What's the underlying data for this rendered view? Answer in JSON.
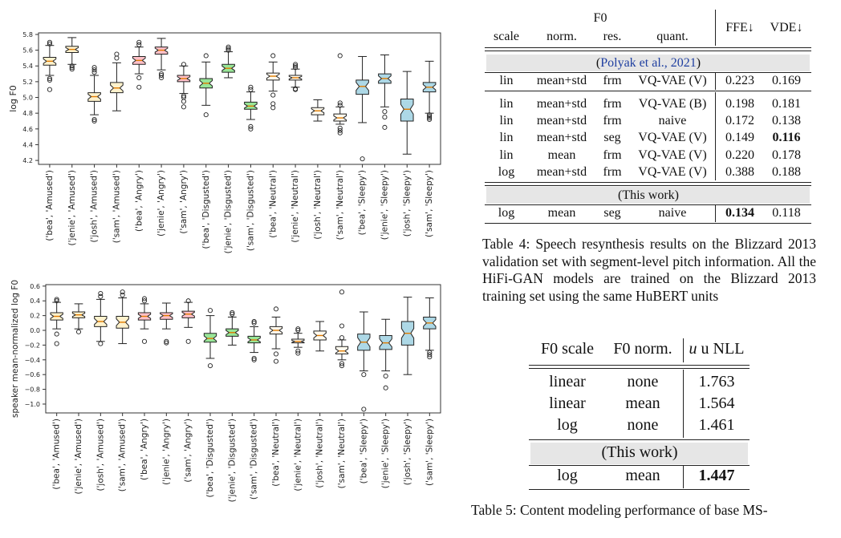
{
  "chart_top": {
    "type": "box",
    "ylabel": "log F0",
    "ylim": [
      4.15,
      5.82
    ],
    "yticks": [
      "4.2",
      "4.4",
      "4.6",
      "4.8",
      "5.0",
      "5.2",
      "5.4",
      "5.6",
      "5.8"
    ],
    "categories": [
      "('bea', 'Amused')",
      "('jenie', 'Amused')",
      "('josh', 'Amused')",
      "('sam', 'Amused')",
      "('bea', 'Angry')",
      "('jenie', 'Angry')",
      "('sam', 'Angry')",
      "('bea', 'Disgusted')",
      "('jenie', 'Disgusted')",
      "('sam', 'Disgusted')",
      "('bea', 'Neutral')",
      "('jenie', 'Neutral')",
      "('josh', 'Neutral')",
      "('sam', 'Neutral')",
      "('bea', 'Sleepy')",
      "('jenie', 'Sleepy')",
      "('josh', 'Sleepy')",
      "('sam', 'Sleepy')"
    ],
    "colors": [
      "#fff2cc",
      "#fff2cc",
      "#fff2cc",
      "#fff2cc",
      "#ffc0c8",
      "#ffc0c8",
      "#ffc0c8",
      "#98e698",
      "#98e698",
      "#98e698",
      "#fffaee",
      "#fffaee",
      "#fffaee",
      "#fffaee",
      "#add8e6",
      "#add8e6",
      "#add8e6",
      "#add8e6"
    ],
    "boxes": [
      {
        "wlo": 5.28,
        "q1": 5.41,
        "med": 5.46,
        "q3": 5.51,
        "whi": 5.66,
        "out": [
          5.1,
          5.22,
          5.24,
          5.68,
          5.7
        ]
      },
      {
        "wlo": 5.42,
        "q1": 5.57,
        "med": 5.61,
        "q3": 5.65,
        "whi": 5.76,
        "out": [
          5.36,
          5.38,
          5.4
        ]
      },
      {
        "wlo": 4.78,
        "q1": 4.95,
        "med": 5.01,
        "q3": 5.06,
        "whi": 5.28,
        "out": [
          4.7,
          4.72,
          5.32,
          5.35,
          5.38
        ]
      },
      {
        "wlo": 4.83,
        "q1": 5.06,
        "med": 5.12,
        "q3": 5.19,
        "whi": 5.44,
        "out": [
          5.5,
          5.55
        ]
      },
      {
        "wlo": 5.3,
        "q1": 5.42,
        "med": 5.47,
        "q3": 5.52,
        "whi": 5.64,
        "out": [
          5.13,
          5.25,
          5.67,
          5.7
        ]
      },
      {
        "wlo": 5.35,
        "q1": 5.55,
        "med": 5.6,
        "q3": 5.64,
        "whi": 5.75,
        "out": [
          5.25,
          5.28,
          5.3
        ]
      },
      {
        "wlo": 5.05,
        "q1": 5.2,
        "med": 5.24,
        "q3": 5.28,
        "whi": 5.4,
        "out": [
          4.88,
          4.95,
          5.0,
          5.02,
          5.42
        ]
      },
      {
        "wlo": 4.9,
        "q1": 5.12,
        "med": 5.18,
        "q3": 5.24,
        "whi": 5.45,
        "out": [
          4.78,
          5.53
        ]
      },
      {
        "wlo": 5.25,
        "q1": 5.32,
        "med": 5.37,
        "q3": 5.42,
        "whi": 5.58,
        "out": [
          5.6,
          5.62,
          5.64
        ]
      },
      {
        "wlo": 4.72,
        "q1": 4.85,
        "med": 4.89,
        "q3": 4.94,
        "whi": 5.07,
        "out": [
          4.6,
          4.63,
          5.1,
          5.13
        ]
      },
      {
        "wlo": 5.08,
        "q1": 5.22,
        "med": 5.27,
        "q3": 5.31,
        "whi": 5.45,
        "out": [
          4.87,
          4.92,
          5.03,
          5.53
        ]
      },
      {
        "wlo": 5.13,
        "q1": 5.22,
        "med": 5.25,
        "q3": 5.28,
        "whi": 5.36,
        "out": [
          5.1,
          5.11,
          5.38,
          5.4,
          5.42
        ]
      },
      {
        "wlo": 4.7,
        "q1": 4.78,
        "med": 4.83,
        "q3": 4.87,
        "whi": 4.97,
        "out": []
      },
      {
        "wlo": 4.66,
        "q1": 4.7,
        "med": 4.74,
        "q3": 4.79,
        "whi": 4.88,
        "out": [
          4.55,
          4.58,
          4.61,
          4.9,
          4.93,
          5.53
        ]
      },
      {
        "wlo": 4.68,
        "q1": 5.04,
        "med": 5.14,
        "q3": 5.22,
        "whi": 5.52,
        "out": [
          4.22
        ]
      },
      {
        "wlo": 4.88,
        "q1": 5.18,
        "med": 5.24,
        "q3": 5.3,
        "whi": 5.54,
        "out": [
          4.62,
          4.75,
          4.82
        ]
      },
      {
        "wlo": 4.28,
        "q1": 4.7,
        "med": 4.85,
        "q3": 4.98,
        "whi": 5.33,
        "out": []
      },
      {
        "wlo": 4.8,
        "q1": 5.07,
        "med": 5.13,
        "q3": 5.19,
        "whi": 5.46,
        "out": [
          4.72,
          4.74,
          4.76,
          4.78
        ]
      }
    ]
  },
  "chart_bottom": {
    "type": "box",
    "ylabel": "speaker mean-normalized log F0",
    "ylim": [
      -1.12,
      0.62
    ],
    "yticks": [
      "−1.0",
      "−0.8",
      "−0.6",
      "−0.4",
      "−0.2",
      "0.0",
      "0.2",
      "0.4",
      "0.6"
    ],
    "categories": [
      "('bea', 'Amused')",
      "('jenie', 'Amused')",
      "('josh', 'Amused')",
      "('sam', 'Amused')",
      "('bea', 'Angry')",
      "('jenie', 'Angry')",
      "('sam', 'Angry')",
      "('bea', 'Disgusted')",
      "('jenie', 'Disgusted')",
      "('sam', 'Disgusted')",
      "('bea', 'Neutral')",
      "('jenie', 'Neutral')",
      "('josh', 'Neutral')",
      "('sam', 'Neutral')",
      "('bea', 'Sleepy')",
      "('jenie', 'Sleepy')",
      "('josh', 'Sleepy')",
      "('sam', 'Sleepy')"
    ],
    "colors": [
      "#fff2cc",
      "#fff2cc",
      "#fff2cc",
      "#fff2cc",
      "#ffc0c8",
      "#ffc0c8",
      "#ffc0c8",
      "#98e698",
      "#98e698",
      "#98e698",
      "#fffaee",
      "#fffaee",
      "#fffaee",
      "#fffaee",
      "#add8e6",
      "#add8e6",
      "#add8e6",
      "#add8e6"
    ],
    "boxes": [
      {
        "wlo": 0.02,
        "q1": 0.14,
        "med": 0.19,
        "q3": 0.24,
        "whi": 0.38,
        "out": [
          -0.18,
          -0.05,
          0.4,
          0.42
        ]
      },
      {
        "wlo": 0.02,
        "q1": 0.17,
        "med": 0.21,
        "q3": 0.25,
        "whi": 0.36,
        "out": [
          -0.02
        ]
      },
      {
        "wlo": -0.15,
        "q1": 0.05,
        "med": 0.12,
        "q3": 0.19,
        "whi": 0.42,
        "out": [
          -0.18,
          0.46,
          0.5
        ]
      },
      {
        "wlo": -0.18,
        "q1": 0.03,
        "med": 0.11,
        "q3": 0.19,
        "whi": 0.44,
        "out": [
          0.48,
          0.52
        ]
      },
      {
        "wlo": 0.02,
        "q1": 0.14,
        "med": 0.19,
        "q3": 0.24,
        "whi": 0.36,
        "out": [
          -0.15,
          0.4,
          0.43
        ]
      },
      {
        "wlo": 0.02,
        "q1": 0.15,
        "med": 0.2,
        "q3": 0.24,
        "whi": 0.37,
        "out": [
          -0.15,
          -0.17
        ]
      },
      {
        "wlo": 0.04,
        "q1": 0.17,
        "med": 0.22,
        "q3": 0.26,
        "whi": 0.38,
        "out": [
          -0.15,
          0.4
        ]
      },
      {
        "wlo": -0.38,
        "q1": -0.16,
        "med": -0.11,
        "q3": -0.04,
        "whi": 0.2,
        "out": [
          -0.48,
          0.27
        ]
      },
      {
        "wlo": -0.2,
        "q1": -0.08,
        "med": -0.03,
        "q3": 0.02,
        "whi": 0.18,
        "out": [
          0.22,
          0.24
        ]
      },
      {
        "wlo": -0.3,
        "q1": -0.17,
        "med": -0.13,
        "q3": -0.08,
        "whi": 0.05,
        "out": [
          -0.38,
          -0.4,
          0.1,
          0.12
        ]
      },
      {
        "wlo": -0.25,
        "q1": -0.05,
        "med": 0.0,
        "q3": 0.05,
        "whi": 0.18,
        "out": [
          -0.32,
          -0.42,
          0.29
        ]
      },
      {
        "wlo": -0.23,
        "q1": -0.17,
        "med": -0.15,
        "q3": -0.12,
        "whi": -0.04,
        "out": [
          -0.28,
          -0.31,
          0.0,
          0.02
        ]
      },
      {
        "wlo": -0.28,
        "q1": -0.13,
        "med": -0.07,
        "q3": -0.01,
        "whi": 0.12,
        "out": []
      },
      {
        "wlo": -0.4,
        "q1": -0.32,
        "med": -0.28,
        "q3": -0.22,
        "whi": -0.13,
        "out": [
          -0.45,
          -0.48,
          -0.1,
          0.06,
          0.52
        ]
      },
      {
        "wlo": -0.55,
        "q1": -0.27,
        "med": -0.16,
        "q3": -0.05,
        "whi": 0.25,
        "out": [
          -0.6,
          -1.07
        ]
      },
      {
        "wlo": -0.55,
        "q1": -0.26,
        "med": -0.17,
        "q3": -0.07,
        "whi": 0.15,
        "out": [
          -0.62,
          -0.78
        ]
      },
      {
        "wlo": -0.6,
        "q1": -0.2,
        "med": -0.04,
        "q3": 0.12,
        "whi": 0.45,
        "out": []
      },
      {
        "wlo": -0.27,
        "q1": 0.02,
        "med": 0.1,
        "q3": 0.18,
        "whi": 0.44,
        "out": [
          -0.3,
          -0.33,
          -0.36
        ]
      }
    ]
  },
  "table4": {
    "group_header": "F0",
    "headers": [
      "scale",
      "norm.",
      "res.",
      "quant.",
      "FFE↓",
      "VDE↓"
    ],
    "section1_cite": "Polyak et al., 2021",
    "rows1": [
      [
        "lin",
        "mean+std",
        "frm",
        "VQ-VAE (V)",
        "0.223",
        "0.169"
      ]
    ],
    "rows2": [
      [
        "lin",
        "mean+std",
        "frm",
        "VQ-VAE (B)",
        "0.198",
        "0.181"
      ],
      [
        "lin",
        "mean+std",
        "frm",
        "naive",
        "0.172",
        "0.138"
      ],
      [
        "lin",
        "mean+std",
        "seg",
        "VQ-VAE (V)",
        "0.149",
        "0.116"
      ],
      [
        "lin",
        "mean",
        "frm",
        "VQ-VAE (V)",
        "0.220",
        "0.178"
      ],
      [
        "log",
        "mean+std",
        "frm",
        "VQ-VAE (V)",
        "0.388",
        "0.188"
      ]
    ],
    "this_work": "(This work)",
    "row3": [
      "log",
      "mean",
      "seg",
      "naive",
      "0.134",
      "0.118"
    ],
    "caption": "Table 4: Speech resynthesis results on the Blizzard 2013 validation set with segment-level pitch information. All the HiFi-GAN models are trained on the Blizzard 2013 training set using the same HuBERT units"
  },
  "table5": {
    "headers": [
      "F0 scale",
      "F0 norm.",
      "u NLL"
    ],
    "rows": [
      [
        "linear",
        "none",
        "1.763"
      ],
      [
        "linear",
        "mean",
        "1.564"
      ],
      [
        "log",
        "none",
        "1.461"
      ]
    ],
    "this_work": "(This work)",
    "row_last": [
      "log",
      "mean",
      "1.447"
    ],
    "caption": "Table 5: Content modeling performance of base MS-"
  }
}
